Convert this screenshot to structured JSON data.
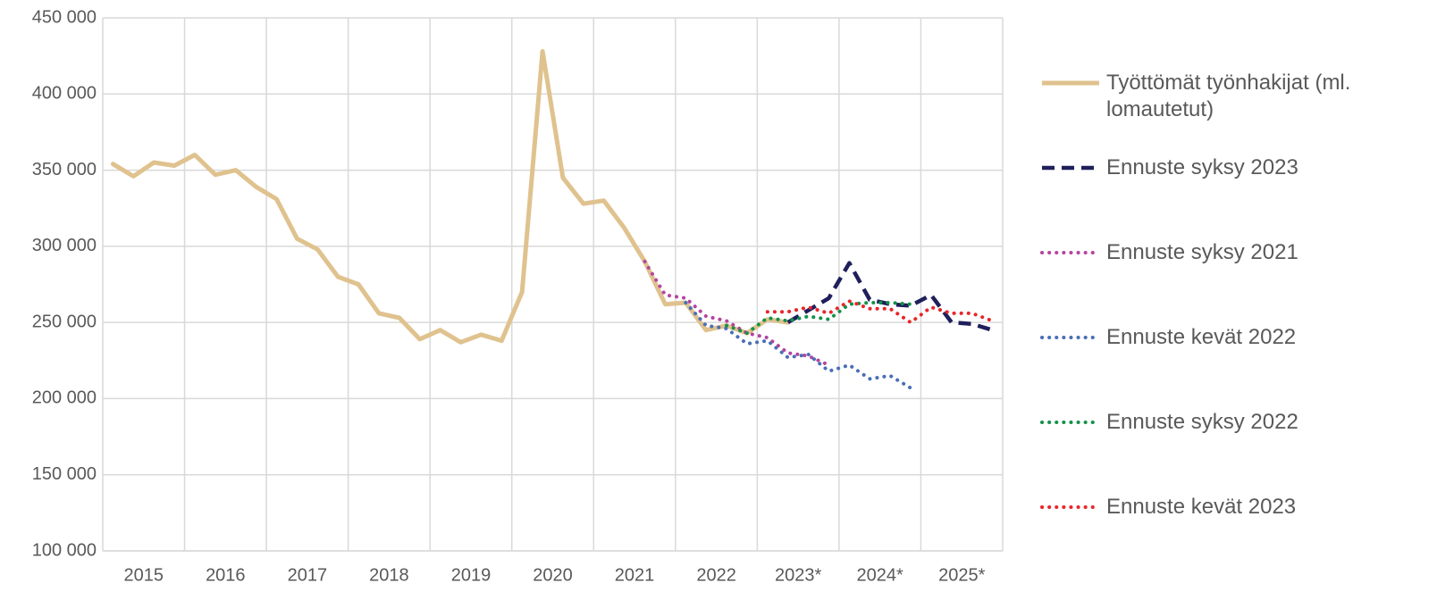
{
  "chart_data": {
    "type": "line",
    "categories": [
      "2015",
      null,
      null,
      null,
      "2016",
      null,
      null,
      null,
      "2017",
      null,
      null,
      null,
      "2018",
      null,
      null,
      null,
      "2019",
      null,
      null,
      null,
      "2020",
      null,
      null,
      null,
      "2021",
      null,
      null,
      null,
      "2022",
      null,
      null,
      null,
      "2023*",
      null,
      null,
      null,
      "2024*",
      null,
      null,
      null,
      "2025*",
      null,
      null,
      null
    ],
    "ylim": [
      100000,
      450000
    ],
    "yticks": [
      {
        "value": 100000,
        "label": "100 000"
      },
      {
        "value": 150000,
        "label": "150 000"
      },
      {
        "value": 200000,
        "label": "200 000"
      },
      {
        "value": 250000,
        "label": "250 000"
      },
      {
        "value": 300000,
        "label": "300 000"
      },
      {
        "value": 350000,
        "label": "350 000"
      },
      {
        "value": 400000,
        "label": "400 000"
      },
      {
        "value": 450000,
        "label": "450 000"
      }
    ],
    "grid": true,
    "series": [
      {
        "name": "Työttömät työnhakijat (ml. lomautetut)",
        "color": "#dfc28e",
        "style": "solid",
        "values": [
          354000,
          346000,
          355000,
          353000,
          360000,
          347000,
          350000,
          339000,
          331000,
          305000,
          298000,
          280000,
          275000,
          256000,
          253000,
          239000,
          245000,
          237000,
          242000,
          238000,
          270000,
          428000,
          345000,
          328000,
          330000,
          312000,
          290000,
          262000,
          263000,
          245000,
          248000,
          243000,
          252000,
          250000,
          null,
          null,
          null,
          null,
          null,
          null,
          null,
          null,
          null,
          null
        ]
      },
      {
        "name": "Ennuste syksy 2023",
        "color": "#1f1f5c",
        "style": "dashed",
        "values": [
          null,
          null,
          null,
          null,
          null,
          null,
          null,
          null,
          null,
          null,
          null,
          null,
          null,
          null,
          null,
          null,
          null,
          null,
          null,
          null,
          null,
          null,
          null,
          null,
          null,
          null,
          null,
          null,
          null,
          null,
          null,
          null,
          null,
          250000,
          258000,
          266000,
          289000,
          265000,
          262000,
          261000,
          268000,
          250000,
          249000,
          245000
        ]
      },
      {
        "name": "Ennuste syksy 2021",
        "color": "#b5449f",
        "style": "dotted",
        "values": [
          null,
          null,
          null,
          null,
          null,
          null,
          null,
          null,
          null,
          null,
          null,
          null,
          null,
          null,
          null,
          null,
          null,
          null,
          null,
          null,
          null,
          null,
          null,
          null,
          null,
          null,
          290000,
          268000,
          266000,
          254000,
          251000,
          243000,
          240000,
          230000,
          228000,
          222000,
          null,
          null,
          null,
          null,
          null,
          null,
          null,
          null
        ]
      },
      {
        "name": "Ennuste kevät 2022",
        "color": "#4a6fb5",
        "style": "dotted",
        "values": [
          null,
          null,
          null,
          null,
          null,
          null,
          null,
          null,
          null,
          null,
          null,
          null,
          null,
          null,
          null,
          null,
          null,
          null,
          null,
          null,
          null,
          null,
          null,
          null,
          null,
          null,
          null,
          null,
          263000,
          248000,
          246000,
          236000,
          238000,
          227000,
          229000,
          218000,
          222000,
          213000,
          215000,
          207000,
          null,
          null,
          null,
          null
        ]
      },
      {
        "name": "Ennuste syksy 2022",
        "color": "#15924a",
        "style": "dotted",
        "values": [
          null,
          null,
          null,
          null,
          null,
          null,
          null,
          null,
          null,
          null,
          null,
          null,
          null,
          null,
          null,
          null,
          null,
          null,
          null,
          null,
          null,
          null,
          null,
          null,
          null,
          null,
          null,
          null,
          null,
          null,
          248000,
          243000,
          253000,
          251000,
          254000,
          252000,
          262000,
          263000,
          263000,
          262000,
          null,
          null,
          null,
          null
        ]
      },
      {
        "name": "Ennuste kevät 2023",
        "color": "#e8262a",
        "style": "dotted",
        "values": [
          null,
          null,
          null,
          null,
          null,
          null,
          null,
          null,
          null,
          null,
          null,
          null,
          null,
          null,
          null,
          null,
          null,
          null,
          null,
          null,
          null,
          null,
          null,
          null,
          null,
          null,
          null,
          null,
          null,
          null,
          null,
          null,
          257000,
          257000,
          260000,
          256000,
          264000,
          259000,
          259000,
          250000,
          260000,
          256000,
          256000,
          251000
        ]
      }
    ]
  }
}
